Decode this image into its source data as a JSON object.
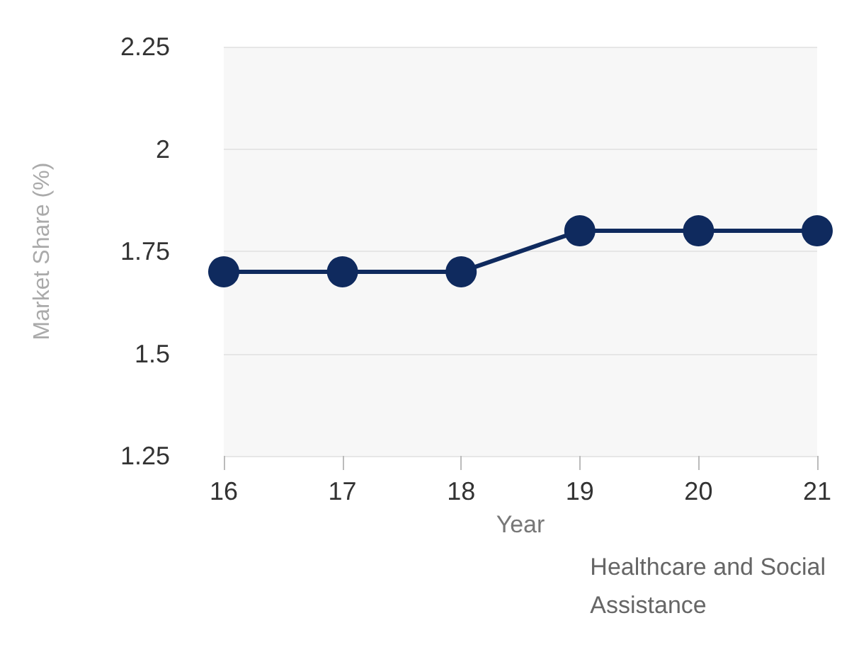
{
  "chart_data": {
    "type": "line",
    "xlabel": "Year",
    "ylabel": "Market Share (%)",
    "categories": [
      "16",
      "17",
      "18",
      "19",
      "20",
      "21"
    ],
    "series": [
      {
        "color": "#0f2a5e",
        "values": [
          1.7,
          1.7,
          1.7,
          1.8,
          1.8,
          1.8
        ]
      }
    ],
    "ylim": [
      1.25,
      2.25
    ],
    "yticks": [
      1.25,
      1.5,
      1.75,
      2,
      2.25
    ],
    "grid": "y",
    "marker": "circle",
    "line_style": "solid",
    "annotations": [
      "Healthcare and Social\nAssistance"
    ]
  }
}
